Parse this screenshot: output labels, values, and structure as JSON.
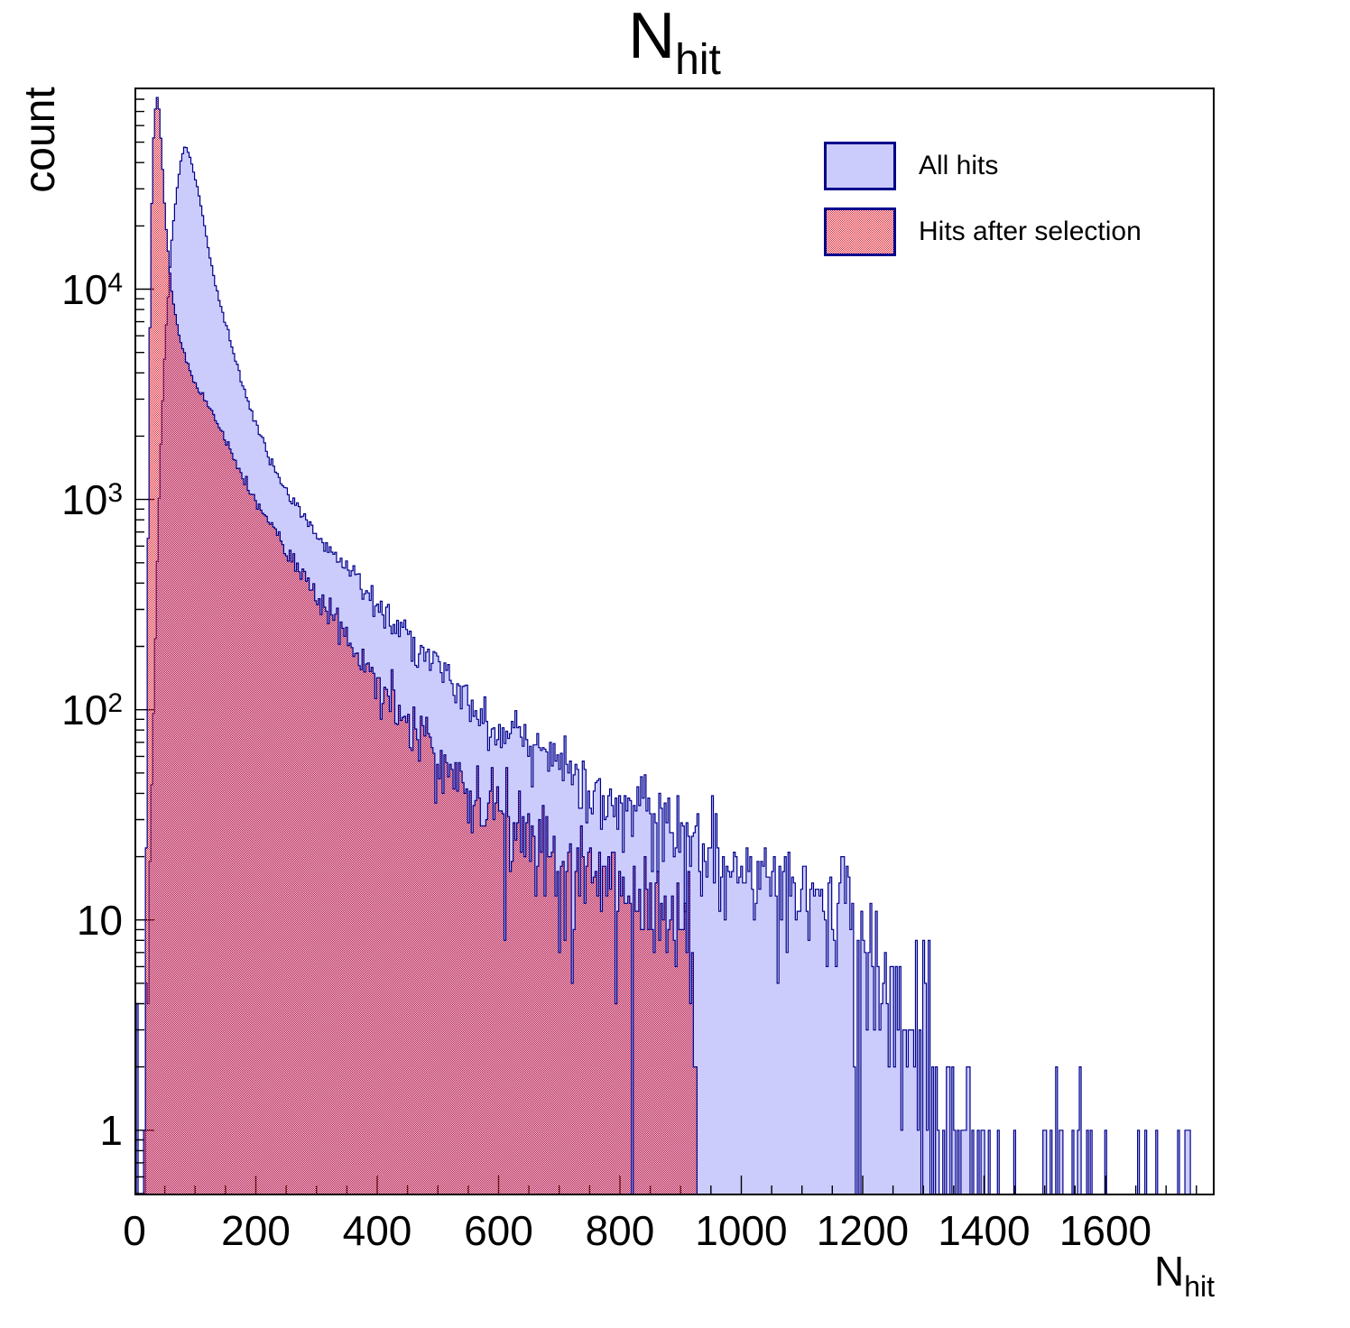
{
  "title": {
    "base": "N",
    "subscript": "hit"
  },
  "y_axis": {
    "label": "count",
    "scale": "log",
    "min": 0.49,
    "max": 91000,
    "decade_labels": [
      {
        "value": 1,
        "base": "1",
        "exp": ""
      },
      {
        "value": 10,
        "base": "10",
        "exp": ""
      },
      {
        "value": 100,
        "base": "10",
        "exp": "2"
      },
      {
        "value": 1000,
        "base": "10",
        "exp": "3"
      },
      {
        "value": 10000,
        "base": "10",
        "exp": "4"
      }
    ]
  },
  "x_axis": {
    "label_base": "N",
    "label_subscript": "hit",
    "min": 0,
    "max": 1780,
    "major_step": 200,
    "minor_step": 50,
    "tick_labels": [
      "0",
      "200",
      "400",
      "600",
      "800",
      "1000",
      "1200",
      "1400",
      "1600"
    ]
  },
  "legend": {
    "entries": [
      {
        "label": "All hits",
        "style": "solid"
      },
      {
        "label": "Hits after selection",
        "style": "checker"
      }
    ]
  },
  "colors": {
    "outline": "#00008c",
    "blue_fill": "#ccccfc",
    "red_checker": "#dc1f30",
    "axis": "#000000",
    "text": "#000000"
  },
  "chart_data": {
    "type": "histogram",
    "x_range": [
      0,
      1780
    ],
    "y_range": [
      0.49,
      91000
    ],
    "y_scale": "log",
    "bin_width": 3,
    "noise_factor": 1.3,
    "seed": 1337,
    "series": [
      {
        "name": "All hits",
        "peak": {
          "x": 83,
          "count": 48000
        },
        "envelope": [
          [
            3,
            0.4
          ],
          [
            5,
            4
          ],
          [
            7,
            1
          ],
          [
            10,
            0.6
          ],
          [
            14,
            1
          ],
          [
            18,
            3
          ],
          [
            22,
            7
          ],
          [
            26,
            18
          ],
          [
            30,
            55
          ],
          [
            34,
            180
          ],
          [
            38,
            600
          ],
          [
            42,
            1400
          ],
          [
            46,
            2800
          ],
          [
            50,
            5000
          ],
          [
            55,
            9000
          ],
          [
            60,
            15000
          ],
          [
            65,
            22000
          ],
          [
            70,
            30000
          ],
          [
            76,
            40000
          ],
          [
            83,
            48000
          ],
          [
            88,
            45500
          ],
          [
            95,
            39000
          ],
          [
            103,
            31000
          ],
          [
            112,
            23000
          ],
          [
            122,
            15500
          ],
          [
            135,
            10000
          ],
          [
            150,
            6900
          ],
          [
            165,
            4800
          ],
          [
            180,
            3400
          ],
          [
            200,
            2300
          ],
          [
            230,
            1400
          ],
          [
            257,
            1000
          ],
          [
            290,
            750
          ],
          [
            330,
            540
          ],
          [
            370,
            410
          ],
          [
            420,
            280
          ],
          [
            472,
            194
          ],
          [
            520,
            135
          ],
          [
            560,
            100
          ],
          [
            610,
            78
          ],
          [
            660,
            62
          ],
          [
            700,
            54
          ],
          [
            750,
            44
          ],
          [
            800,
            36
          ],
          [
            850,
            31
          ],
          [
            900,
            26
          ],
          [
            940,
            21
          ],
          [
            980,
            18
          ],
          [
            1020,
            16
          ],
          [
            1060,
            15
          ],
          [
            1100,
            14
          ],
          [
            1140,
            12
          ],
          [
            1180,
            10
          ],
          [
            1210,
            8
          ],
          [
            1235,
            6
          ],
          [
            1250,
            4
          ],
          [
            1258,
            3
          ],
          [
            1262,
            2
          ]
        ],
        "sparse_tail": [
          {
            "from": 1262,
            "to": 1312,
            "prob": 0.8,
            "counts": [
              1,
              1,
              2,
              2,
              3,
              4,
              5,
              8
            ]
          },
          {
            "from": 1312,
            "to": 1405,
            "prob": 0.5,
            "counts": [
              1,
              1,
              1,
              1,
              2
            ]
          },
          {
            "from": 1405,
            "to": 1780,
            "prob": 0.12,
            "counts": [
              1,
              1,
              1,
              1,
              1,
              2
            ]
          }
        ]
      },
      {
        "name": "Hits after selection",
        "peak": {
          "x": 38,
          "count": 83000
        },
        "cutoff": 930,
        "envelope": [
          [
            14,
            0.4
          ],
          [
            16,
            2
          ],
          [
            18,
            8
          ],
          [
            20,
            60
          ],
          [
            22,
            400
          ],
          [
            24,
            2500
          ],
          [
            26,
            9000
          ],
          [
            28,
            22000
          ],
          [
            30,
            40000
          ],
          [
            32,
            58000
          ],
          [
            34,
            70000
          ],
          [
            36,
            79000
          ],
          [
            38,
            83000
          ],
          [
            40,
            76000
          ],
          [
            42,
            62000
          ],
          [
            45,
            45000
          ],
          [
            48,
            30000
          ],
          [
            52,
            20000
          ],
          [
            56,
            14500
          ],
          [
            61,
            10000
          ],
          [
            68,
            7300
          ],
          [
            76,
            5600
          ],
          [
            85,
            4600
          ],
          [
            95,
            3900
          ],
          [
            105,
            3400
          ],
          [
            116,
            3000
          ],
          [
            130,
            2500
          ],
          [
            150,
            1900
          ],
          [
            170,
            1450
          ],
          [
            199,
            1000
          ],
          [
            230,
            720
          ],
          [
            260,
            520
          ],
          [
            300,
            345
          ],
          [
            340,
            240
          ],
          [
            380,
            170
          ],
          [
            427,
            105
          ],
          [
            470,
            75
          ],
          [
            520,
            52
          ],
          [
            570,
            38
          ],
          [
            620,
            29
          ],
          [
            680,
            22
          ],
          [
            740,
            17
          ],
          [
            800,
            13
          ],
          [
            850,
            11
          ],
          [
            890,
            9.5
          ],
          [
            915,
            8
          ],
          [
            925,
            6
          ],
          [
            929,
            4
          ]
        ],
        "sparse_tail": []
      }
    ]
  }
}
